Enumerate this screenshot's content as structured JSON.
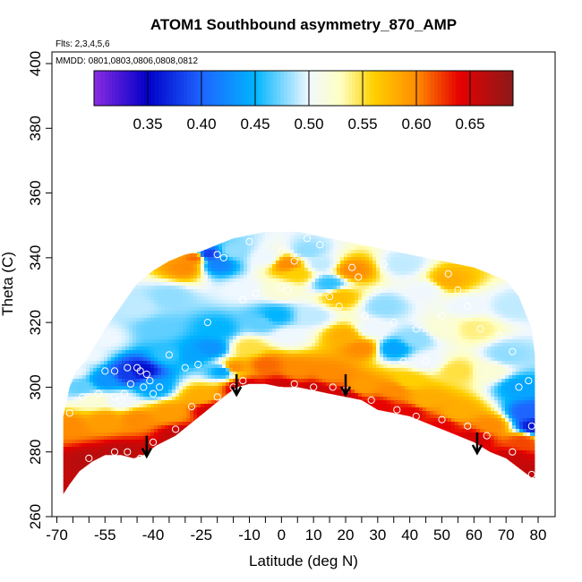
{
  "chart_data": {
    "type": "heatmap",
    "title": "ATOM1 Southbound asymmetry_870_AMP",
    "subtitle_flights": "Flts: 2,3,4,5,6",
    "subtitle_dates": "MMDD: 0801,0803,0806,0808,0812",
    "xlabel": "Latitude (deg N)",
    "ylabel": "Theta (C)",
    "xlim": [
      -70,
      82
    ],
    "ylim": [
      260,
      403
    ],
    "x_ticks": [
      -70,
      -55,
      -40,
      -25,
      -10,
      0,
      10,
      20,
      30,
      40,
      50,
      60,
      70,
      80
    ],
    "x_tick_labels": [
      "-70",
      "-55",
      "-40",
      "-25",
      "-10",
      "0",
      "10",
      "20",
      "30",
      "40",
      "50",
      "60",
      "70",
      "80"
    ],
    "x_minor_ticks": [
      -65,
      -60,
      -50,
      -45,
      -35,
      -30,
      -20,
      -15,
      -5,
      5,
      15,
      25,
      35,
      45,
      55,
      65,
      75
    ],
    "y_ticks": [
      260,
      280,
      300,
      320,
      340,
      360,
      380,
      400
    ],
    "y_tick_labels": [
      "260",
      "280",
      "300",
      "320",
      "340",
      "360",
      "380",
      "400"
    ],
    "colorbar": {
      "range": [
        0.3,
        0.69
      ],
      "ticks": [
        0.35,
        0.4,
        0.45,
        0.5,
        0.55,
        0.6,
        0.65
      ],
      "tick_labels": [
        "0.35",
        "0.40",
        "0.45",
        "0.50",
        "0.55",
        "0.60",
        "0.65"
      ],
      "divisions": [
        0.35,
        0.4,
        0.45,
        0.5,
        0.55,
        0.6,
        0.65
      ],
      "stops": [
        {
          "v": 0.3,
          "color": "#8a2be2"
        },
        {
          "v": 0.35,
          "color": "#0000c8"
        },
        {
          "v": 0.4,
          "color": "#1e64ff"
        },
        {
          "v": 0.45,
          "color": "#00b4ff"
        },
        {
          "v": 0.5,
          "color": "#f0f8ff"
        },
        {
          "v": 0.53,
          "color": "#ffffc0"
        },
        {
          "v": 0.56,
          "color": "#ffd000"
        },
        {
          "v": 0.6,
          "color": "#ff8c00"
        },
        {
          "v": 0.64,
          "color": "#e60000"
        },
        {
          "v": 0.69,
          "color": "#8b1a1a"
        }
      ]
    },
    "lower_boundary": [
      [
        -68,
        267
      ],
      [
        -66,
        270
      ],
      [
        -63,
        274
      ],
      [
        -59,
        277
      ],
      [
        -55,
        279
      ],
      [
        -50,
        279
      ],
      [
        -46,
        278
      ],
      [
        -43,
        279
      ],
      [
        -39,
        282
      ],
      [
        -33,
        285
      ],
      [
        -28,
        289
      ],
      [
        -23,
        293
      ],
      [
        -18,
        297
      ],
      [
        -14,
        300
      ],
      [
        -10,
        301
      ],
      [
        -5,
        301
      ],
      [
        0,
        300
      ],
      [
        5,
        300
      ],
      [
        10,
        299
      ],
      [
        15,
        298
      ],
      [
        20,
        297
      ],
      [
        25,
        296
      ],
      [
        30,
        293
      ],
      [
        35,
        292
      ],
      [
        40,
        291
      ],
      [
        45,
        289
      ],
      [
        50,
        287
      ],
      [
        55,
        285
      ],
      [
        60,
        283
      ],
      [
        65,
        280
      ],
      [
        70,
        278
      ],
      [
        74,
        275
      ],
      [
        78,
        272
      ],
      [
        79,
        272
      ]
    ],
    "upper_boundary": [
      [
        -68,
        291
      ],
      [
        -66,
        300
      ],
      [
        -64,
        305
      ],
      [
        -61,
        308
      ],
      [
        -58,
        313
      ],
      [
        -55,
        318
      ],
      [
        -50,
        325
      ],
      [
        -45,
        332
      ],
      [
        -40,
        336
      ],
      [
        -35,
        339
      ],
      [
        -30,
        341
      ],
      [
        -25,
        342
      ],
      [
        -20,
        344
      ],
      [
        -15,
        346
      ],
      [
        -10,
        347
      ],
      [
        -5,
        348
      ],
      [
        0,
        348
      ],
      [
        5,
        348
      ],
      [
        10,
        347
      ],
      [
        15,
        346
      ],
      [
        20,
        345
      ],
      [
        25,
        344
      ],
      [
        30,
        343
      ],
      [
        35,
        342
      ],
      [
        40,
        341
      ],
      [
        45,
        340
      ],
      [
        50,
        339
      ],
      [
        55,
        338
      ],
      [
        60,
        337
      ],
      [
        65,
        335
      ],
      [
        70,
        333
      ],
      [
        74,
        328
      ],
      [
        78,
        318
      ],
      [
        79,
        310
      ]
    ],
    "arrows": [
      [
        -42,
        285
      ],
      [
        -14,
        304
      ],
      [
        20,
        304
      ],
      [
        61,
        286
      ]
    ],
    "value_field_points": [
      {
        "lat": -67,
        "theta": 271,
        "v": 0.66
      },
      {
        "lat": -60,
        "theta": 277,
        "v": 0.665
      },
      {
        "lat": -50,
        "theta": 279,
        "v": 0.665
      },
      {
        "lat": -42,
        "theta": 279,
        "v": 0.66
      },
      {
        "lat": -32,
        "theta": 285,
        "v": 0.66
      },
      {
        "lat": -22,
        "theta": 293,
        "v": 0.65
      },
      {
        "lat": -12,
        "theta": 300,
        "v": 0.655
      },
      {
        "lat": 0,
        "theta": 300,
        "v": 0.655
      },
      {
        "lat": 10,
        "theta": 299,
        "v": 0.655
      },
      {
        "lat": 20,
        "theta": 297,
        "v": 0.655
      },
      {
        "lat": 30,
        "theta": 294,
        "v": 0.64
      },
      {
        "lat": 40,
        "theta": 292,
        "v": 0.64
      },
      {
        "lat": 50,
        "theta": 288,
        "v": 0.64
      },
      {
        "lat": 60,
        "theta": 284,
        "v": 0.65
      },
      {
        "lat": 72,
        "theta": 278,
        "v": 0.655
      },
      {
        "lat": 78,
        "theta": 274,
        "v": 0.66
      },
      {
        "lat": -66,
        "theta": 288,
        "v": 0.6
      },
      {
        "lat": -55,
        "theta": 290,
        "v": 0.59
      },
      {
        "lat": -45,
        "theta": 290,
        "v": 0.6
      },
      {
        "lat": -35,
        "theta": 292,
        "v": 0.59
      },
      {
        "lat": -25,
        "theta": 297,
        "v": 0.58
      },
      {
        "lat": -15,
        "theta": 306,
        "v": 0.6
      },
      {
        "lat": -5,
        "theta": 307,
        "v": 0.61
      },
      {
        "lat": 5,
        "theta": 305,
        "v": 0.6
      },
      {
        "lat": 15,
        "theta": 304,
        "v": 0.6
      },
      {
        "lat": 25,
        "theta": 300,
        "v": 0.59
      },
      {
        "lat": 35,
        "theta": 299,
        "v": 0.6
      },
      {
        "lat": 45,
        "theta": 296,
        "v": 0.58
      },
      {
        "lat": 55,
        "theta": 292,
        "v": 0.58
      },
      {
        "lat": 65,
        "theta": 288,
        "v": 0.6
      },
      {
        "lat": 75,
        "theta": 283,
        "v": 0.62
      },
      {
        "lat": -62,
        "theta": 300,
        "v": 0.47
      },
      {
        "lat": -55,
        "theta": 302,
        "v": 0.43
      },
      {
        "lat": -48,
        "theta": 304,
        "v": 0.38
      },
      {
        "lat": -44,
        "theta": 305,
        "v": 0.355
      },
      {
        "lat": -40,
        "theta": 300,
        "v": 0.44
      },
      {
        "lat": -58,
        "theta": 296,
        "v": 0.52
      },
      {
        "lat": -50,
        "theta": 296,
        "v": 0.5
      },
      {
        "lat": -60,
        "theta": 310,
        "v": 0.5
      },
      {
        "lat": -35,
        "theta": 310,
        "v": 0.46
      },
      {
        "lat": -28,
        "theta": 310,
        "v": 0.44
      },
      {
        "lat": -22,
        "theta": 312,
        "v": 0.43
      },
      {
        "lat": -18,
        "theta": 305,
        "v": 0.44
      },
      {
        "lat": -20,
        "theta": 318,
        "v": 0.45
      },
      {
        "lat": -45,
        "theta": 325,
        "v": 0.49
      },
      {
        "lat": -55,
        "theta": 315,
        "v": 0.5
      },
      {
        "lat": -35,
        "theta": 328,
        "v": 0.48
      },
      {
        "lat": -30,
        "theta": 337,
        "v": 0.6
      },
      {
        "lat": -27,
        "theta": 340,
        "v": 0.61
      },
      {
        "lat": -23,
        "theta": 341,
        "v": 0.38
      },
      {
        "lat": -20,
        "theta": 338,
        "v": 0.42
      },
      {
        "lat": -15,
        "theta": 342,
        "v": 0.48
      },
      {
        "lat": -12,
        "theta": 330,
        "v": 0.5
      },
      {
        "lat": -6,
        "theta": 320,
        "v": 0.47
      },
      {
        "lat": -2,
        "theta": 322,
        "v": 0.45
      },
      {
        "lat": 2,
        "theta": 316,
        "v": 0.5
      },
      {
        "lat": 0,
        "theta": 330,
        "v": 0.52
      },
      {
        "lat": 2,
        "theta": 338,
        "v": 0.6
      },
      {
        "lat": 5,
        "theta": 335,
        "v": 0.56
      },
      {
        "lat": 8,
        "theta": 342,
        "v": 0.48
      },
      {
        "lat": 12,
        "theta": 338,
        "v": 0.49
      },
      {
        "lat": 15,
        "theta": 332,
        "v": 0.46
      },
      {
        "lat": 18,
        "theta": 328,
        "v": 0.57
      },
      {
        "lat": 22,
        "theta": 336,
        "v": 0.6
      },
      {
        "lat": 10,
        "theta": 322,
        "v": 0.49
      },
      {
        "lat": 20,
        "theta": 316,
        "v": 0.58
      },
      {
        "lat": 25,
        "theta": 312,
        "v": 0.6
      },
      {
        "lat": 28,
        "theta": 318,
        "v": 0.5
      },
      {
        "lat": 32,
        "theta": 325,
        "v": 0.48
      },
      {
        "lat": 35,
        "theta": 312,
        "v": 0.44
      },
      {
        "lat": 42,
        "theta": 315,
        "v": 0.48
      },
      {
        "lat": 45,
        "theta": 308,
        "v": 0.5
      },
      {
        "lat": 50,
        "theta": 318,
        "v": 0.52
      },
      {
        "lat": 52,
        "theta": 333,
        "v": 0.58
      },
      {
        "lat": 45,
        "theta": 330,
        "v": 0.5
      },
      {
        "lat": 38,
        "theta": 338,
        "v": 0.49
      },
      {
        "lat": 58,
        "theta": 325,
        "v": 0.5
      },
      {
        "lat": 60,
        "theta": 318,
        "v": 0.54
      },
      {
        "lat": 65,
        "theta": 305,
        "v": 0.52
      },
      {
        "lat": 70,
        "theta": 310,
        "v": 0.48
      },
      {
        "lat": 74,
        "theta": 300,
        "v": 0.44
      },
      {
        "lat": 77,
        "theta": 292,
        "v": 0.4
      },
      {
        "lat": 79,
        "theta": 288,
        "v": 0.36
      },
      {
        "lat": 72,
        "theta": 325,
        "v": 0.49
      },
      {
        "lat": 55,
        "theta": 305,
        "v": 0.55
      },
      {
        "lat": -5,
        "theta": 340,
        "v": 0.5
      },
      {
        "lat": -38,
        "theta": 318,
        "v": 0.47
      },
      {
        "lat": -65,
        "theta": 305,
        "v": 0.5
      },
      {
        "lat": -10,
        "theta": 312,
        "v": 0.55
      },
      {
        "lat": 40,
        "theta": 302,
        "v": 0.56
      }
    ],
    "observation_circles": [
      [
        -57,
        298
      ],
      [
        -52,
        297
      ],
      [
        -50,
        296
      ],
      [
        -49,
        298
      ],
      [
        -45,
        306
      ],
      [
        -44,
        305
      ],
      [
        -42,
        304
      ],
      [
        -43,
        300
      ],
      [
        -40,
        298
      ],
      [
        -38,
        300
      ],
      [
        -52,
        305
      ],
      [
        -48,
        306
      ],
      [
        -55,
        305
      ],
      [
        -35,
        310
      ],
      [
        -26,
        307
      ],
      [
        -23,
        320
      ],
      [
        -20,
        341
      ],
      [
        -18,
        340
      ],
      [
        -12,
        327
      ],
      [
        -8,
        329
      ],
      [
        -10,
        345
      ],
      [
        -5,
        349
      ],
      [
        0,
        342
      ],
      [
        0,
        331
      ],
      [
        2,
        330
      ],
      [
        4,
        339
      ],
      [
        8,
        346
      ],
      [
        12,
        344
      ],
      [
        15,
        328
      ],
      [
        18,
        325
      ],
      [
        22,
        337
      ],
      [
        24,
        334
      ],
      [
        26,
        322
      ],
      [
        30,
        330
      ],
      [
        32,
        338
      ],
      [
        35,
        320
      ],
      [
        38,
        308
      ],
      [
        42,
        318
      ],
      [
        45,
        308
      ],
      [
        50,
        322
      ],
      [
        52,
        335
      ],
      [
        55,
        330
      ],
      [
        58,
        325
      ],
      [
        62,
        318
      ],
      [
        68,
        316
      ],
      [
        72,
        311
      ],
      [
        74,
        300
      ],
      [
        77,
        302
      ],
      [
        78,
        288
      ],
      [
        -60,
        278
      ],
      [
        -52,
        280
      ],
      [
        -48,
        280
      ],
      [
        -44,
        278
      ],
      [
        -40,
        283
      ],
      [
        -33,
        287
      ],
      [
        -28,
        294
      ],
      [
        -20,
        297
      ],
      [
        -15,
        300
      ],
      [
        -12,
        302
      ],
      [
        0,
        299
      ],
      [
        4,
        301
      ],
      [
        10,
        300
      ],
      [
        16,
        300
      ],
      [
        20,
        299
      ],
      [
        28,
        296
      ],
      [
        36,
        293
      ],
      [
        42,
        291
      ],
      [
        50,
        290
      ],
      [
        58,
        288
      ],
      [
        64,
        285
      ],
      [
        72,
        280
      ],
      [
        78,
        273
      ],
      [
        -66,
        292
      ],
      [
        -62,
        297
      ],
      [
        -47,
        301
      ],
      [
        -41,
        302
      ],
      [
        -30,
        306
      ]
    ]
  }
}
